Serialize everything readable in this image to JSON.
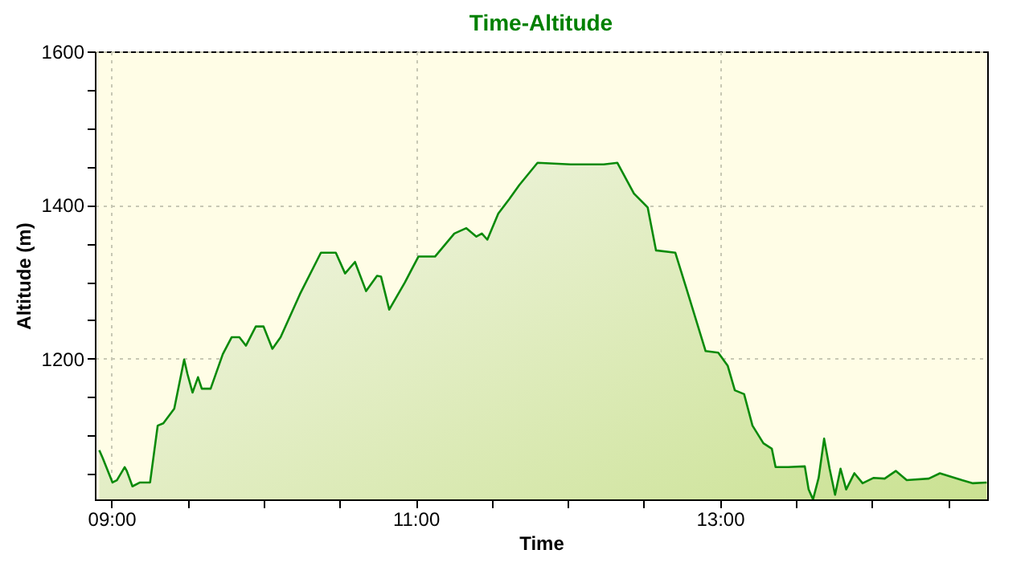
{
  "chart_data": {
    "type": "area",
    "title": "Time-Altitude",
    "xlabel": "Time",
    "ylabel": "Altitude (m)",
    "x": [
      8.92,
      8.942,
      9.007,
      9.036,
      9.087,
      9.101,
      9.138,
      9.188,
      9.254,
      9.304,
      9.341,
      9.413,
      9.478,
      9.5,
      9.533,
      9.569,
      9.594,
      9.652,
      9.732,
      9.79,
      9.841,
      9.884,
      9.949,
      10.0,
      10.058,
      10.112,
      10.239,
      10.377,
      10.475,
      10.536,
      10.601,
      10.674,
      10.746,
      10.772,
      10.826,
      10.928,
      11.018,
      11.127,
      11.254,
      11.333,
      11.399,
      11.435,
      11.471,
      11.543,
      11.616,
      11.681,
      11.801,
      12.018,
      12.236,
      12.326,
      12.435,
      12.525,
      12.58,
      12.707,
      12.779,
      12.906,
      12.989,
      13.051,
      13.098,
      13.159,
      13.214,
      13.286,
      13.341,
      13.366,
      13.449,
      13.558,
      13.583,
      13.612,
      13.649,
      13.685,
      13.721,
      13.757,
      13.793,
      13.83,
      13.884,
      13.938,
      14.011,
      14.083,
      14.156,
      14.228,
      14.373,
      14.446,
      14.591,
      14.663,
      14.754
    ],
    "series": [
      {
        "color": "#0a8a0a",
        "values": [
          1081,
          1071,
          1039,
          1042,
          1059,
          1054,
          1034,
          1039,
          1039,
          1113,
          1116,
          1135,
          1199,
          1180,
          1156,
          1176,
          1161,
          1161,
          1206,
          1228,
          1228,
          1217,
          1242,
          1242,
          1213,
          1228,
          1284,
          1338,
          1338,
          1311,
          1326,
          1288,
          1308,
          1307,
          1264,
          1299,
          1333,
          1333,
          1363,
          1370,
          1359,
          1363,
          1355,
          1389,
          1408,
          1426,
          1455,
          1453,
          1453,
          1455,
          1415,
          1397,
          1341,
          1338,
          1292,
          1210,
          1208,
          1191,
          1159,
          1154,
          1113,
          1090,
          1083,
          1059,
          1059,
          1060,
          1030,
          1017,
          1045,
          1096,
          1057,
          1023,
          1057,
          1030,
          1051,
          1038,
          1045,
          1044,
          1054,
          1042,
          1044,
          1051,
          1042,
          1038,
          1039
        ]
      }
    ],
    "xlim": [
      8.891,
      14.757
    ],
    "xticks": [
      {
        "value": 9,
        "label": "09:00"
      },
      {
        "value": 9.5,
        "label": null
      },
      {
        "value": 10,
        "label": null
      },
      {
        "value": 10.5,
        "label": null
      },
      {
        "value": 11,
        "label": "11:00"
      },
      {
        "value": 11.5,
        "label": null
      },
      {
        "value": 12,
        "label": null
      },
      {
        "value": 12.5,
        "label": null
      },
      {
        "value": 13,
        "label": "13:00"
      },
      {
        "value": 13.5,
        "label": null
      },
      {
        "value": 14,
        "label": null
      },
      {
        "value": 14.5,
        "label": null
      }
    ],
    "ylim": [
      1017,
      1600
    ],
    "yticks": [
      {
        "value": 1050,
        "label": null
      },
      {
        "value": 1100,
        "label": null
      },
      {
        "value": 1150,
        "label": null
      },
      1200,
      {
        "value": 1250,
        "label": null
      },
      {
        "value": 1300,
        "label": null
      },
      {
        "value": 1350,
        "label": null
      },
      1400,
      {
        "value": 1450,
        "label": null
      },
      {
        "value": 1500,
        "label": null
      },
      {
        "value": 1550,
        "label": null
      },
      1600
    ],
    "grid": true,
    "marker": "none",
    "line_style": "solid"
  }
}
